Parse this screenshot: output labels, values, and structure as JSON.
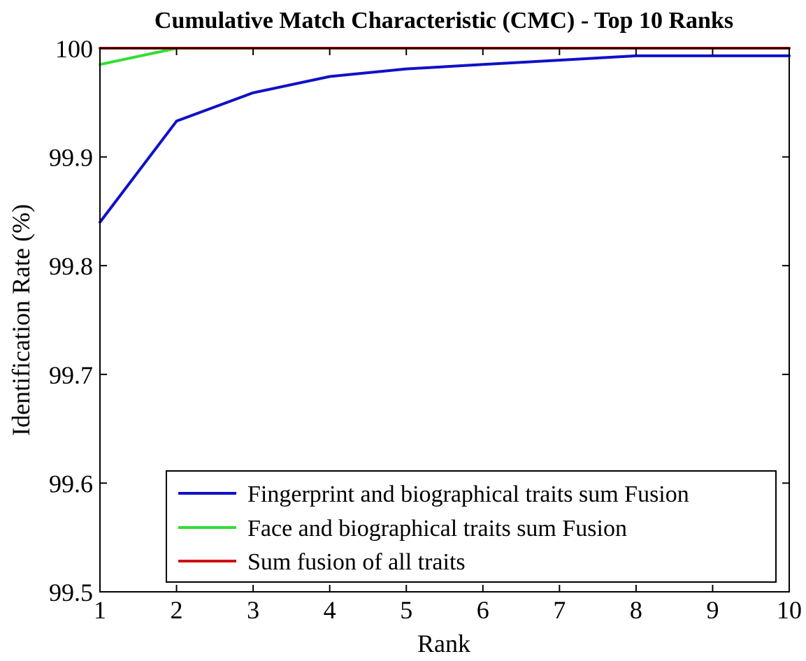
{
  "chart_data": {
    "type": "line",
    "title": "Cumulative Match Characteristic (CMC) - Top 10 Ranks",
    "xlabel": "Rank",
    "ylabel": "Identification Rate (%)",
    "xlim": [
      1,
      10
    ],
    "ylim": [
      99.5,
      100
    ],
    "xticks": [
      "1",
      "2",
      "3",
      "4",
      "5",
      "6",
      "7",
      "8",
      "9",
      "10"
    ],
    "yticks": [
      "99.5",
      "99.6",
      "99.7",
      "99.8",
      "99.9",
      "100"
    ],
    "grid": false,
    "legend_position": "bottom-right",
    "x": [
      1,
      2,
      3,
      4,
      5,
      6,
      7,
      8,
      9,
      10
    ],
    "series": [
      {
        "name": "Fingerprint and biographical traits sum Fusion",
        "color": "#1010c8",
        "values": [
          99.84,
          99.933,
          99.959,
          99.974,
          99.981,
          99.985,
          99.989,
          99.993,
          99.993,
          99.993
        ]
      },
      {
        "name": "Face and biographical traits sum Fusion",
        "color": "#33dd33",
        "values": [
          99.985,
          100,
          100,
          100,
          100,
          100,
          100,
          100,
          100,
          100
        ]
      },
      {
        "name": "Sum fusion of all traits",
        "color": "#cc1111",
        "values": [
          100,
          100,
          100,
          100,
          100,
          100,
          100,
          100,
          100,
          100
        ]
      }
    ]
  }
}
